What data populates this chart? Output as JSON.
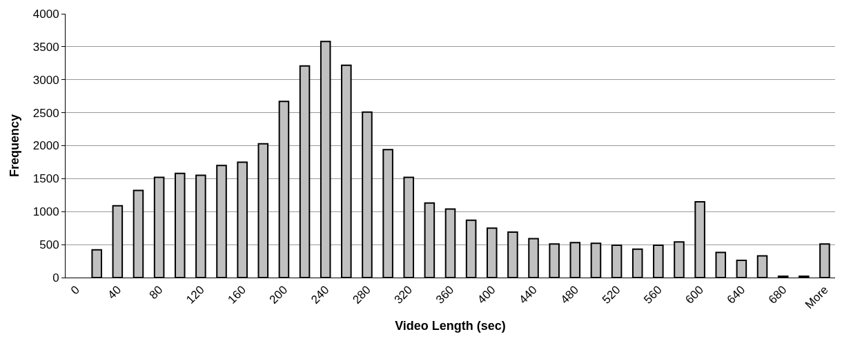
{
  "chart_data": {
    "type": "bar",
    "xlabel": "Video Length (sec)",
    "ylabel": "Frequency",
    "categories": [
      "0",
      null,
      "40",
      null,
      "80",
      null,
      "120",
      null,
      "160",
      null,
      "200",
      null,
      "240",
      null,
      "280",
      null,
      "320",
      null,
      "360",
      null,
      "400",
      null,
      "440",
      null,
      "480",
      null,
      "520",
      null,
      "560",
      null,
      "600",
      null,
      "640",
      null,
      "680",
      null,
      "More"
    ],
    "values": [
      0,
      420,
      1090,
      1320,
      1520,
      1580,
      1550,
      1700,
      1750,
      2030,
      2670,
      3210,
      3580,
      3220,
      2510,
      1940,
      1520,
      1130,
      1040,
      870,
      750,
      690,
      590,
      510,
      530,
      520,
      490,
      430,
      490,
      540,
      1150,
      380,
      260,
      330,
      20,
      20,
      510
    ],
    "color": "#c0c0c0",
    "ylim": [
      0,
      4000
    ],
    "yticks": [
      0,
      500,
      1000,
      1500,
      2000,
      2500,
      3000,
      3500,
      4000
    ],
    "grid": "y",
    "legend": false
  }
}
